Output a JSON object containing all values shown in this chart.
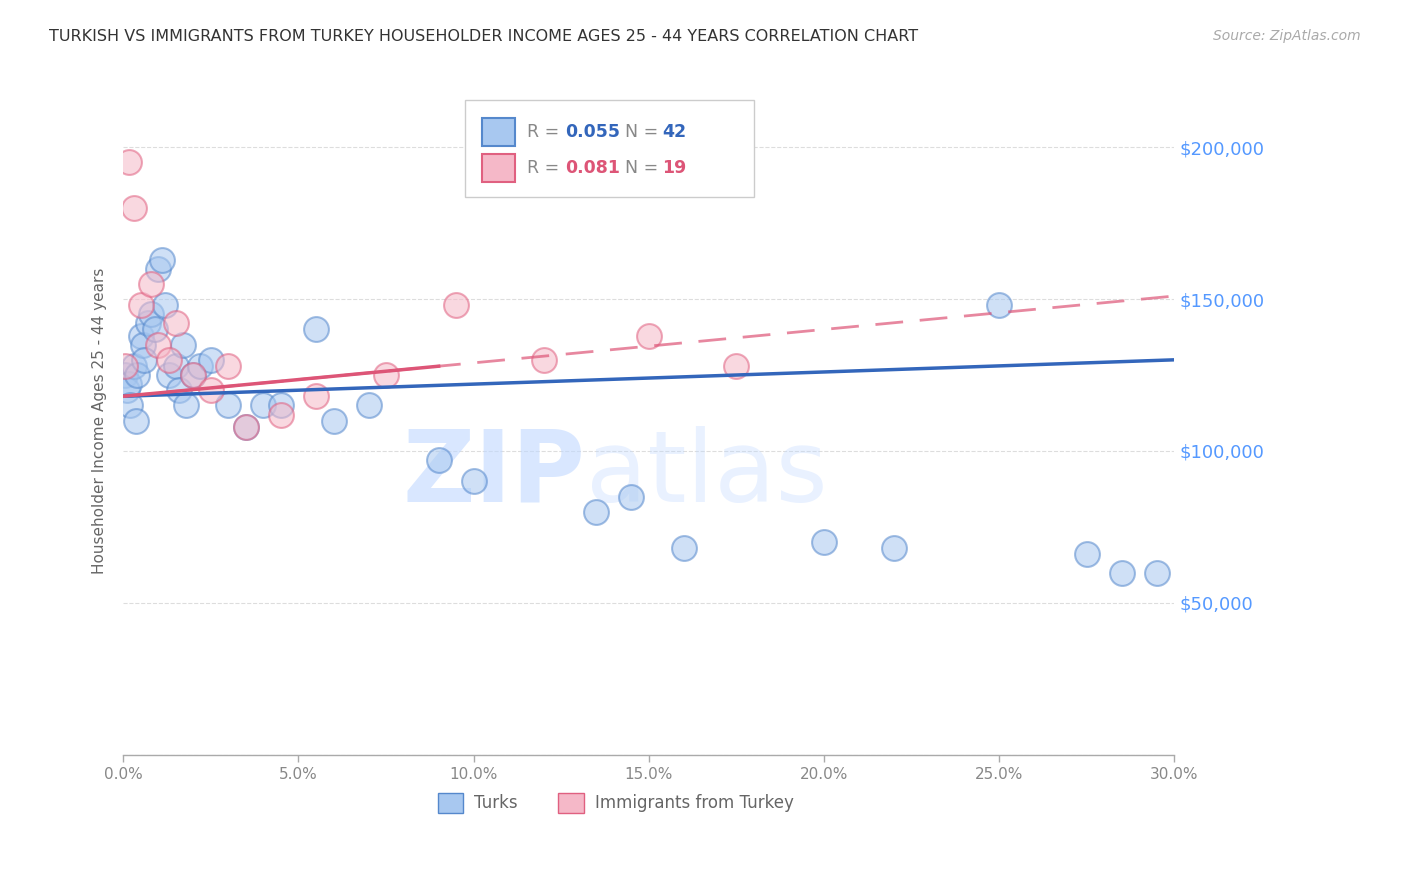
{
  "title": "TURKISH VS IMMIGRANTS FROM TURKEY HOUSEHOLDER INCOME AGES 25 - 44 YEARS CORRELATION CHART",
  "source": "Source: ZipAtlas.com",
  "xlim": [
    0.0,
    30.0
  ],
  "ylim": [
    0,
    220000
  ],
  "xlabel_vals": [
    0.0,
    5.0,
    10.0,
    15.0,
    20.0,
    25.0,
    30.0
  ],
  "xlabel_labels": [
    "0.0%",
    "5.0%",
    "10.0%",
    "15.0%",
    "20.0%",
    "25.0%",
    "30.0%"
  ],
  "ylabel_all_vals": [
    0,
    50000,
    100000,
    150000,
    200000
  ],
  "ylabel_right_vals": [
    200000,
    150000,
    100000,
    50000
  ],
  "ylabel_right_labels": [
    "$200,000",
    "$150,000",
    "$100,000",
    "$50,000"
  ],
  "ylabel_label": "Householder Income Ages 25 - 44 years",
  "blue_face": "#A8C8F0",
  "blue_edge": "#5588CC",
  "pink_face": "#F5B8C8",
  "pink_edge": "#E06080",
  "line_blue": "#3366BB",
  "line_pink": "#DD5577",
  "legend_r1": "0.055",
  "legend_n1": "42",
  "legend_r2": "0.081",
  "legend_n2": "19",
  "legend_label1": "Turks",
  "legend_label2": "Immigrants from Turkey",
  "watermark_zip": "ZIP",
  "watermark_atlas": "atlas",
  "background_color": "#FFFFFF",
  "grid_color": "#DDDDDD",
  "turks_x": [
    0.05,
    0.1,
    0.15,
    0.2,
    0.3,
    0.35,
    0.4,
    0.5,
    0.55,
    0.6,
    0.7,
    0.8,
    0.9,
    1.0,
    1.1,
    1.2,
    1.3,
    1.5,
    1.6,
    1.7,
    1.8,
    2.0,
    2.2,
    2.5,
    3.0,
    3.5,
    4.0,
    5.5,
    7.0,
    10.0,
    13.5,
    16.0,
    20.0,
    22.0,
    25.0,
    27.5,
    28.5,
    29.5,
    14.5,
    9.0,
    6.0,
    4.5
  ],
  "turks_y": [
    125000,
    120000,
    122000,
    115000,
    128000,
    110000,
    125000,
    138000,
    135000,
    130000,
    142000,
    145000,
    140000,
    160000,
    163000,
    148000,
    125000,
    128000,
    120000,
    135000,
    115000,
    125000,
    128000,
    130000,
    115000,
    108000,
    115000,
    140000,
    115000,
    90000,
    80000,
    68000,
    70000,
    68000,
    148000,
    66000,
    60000,
    60000,
    85000,
    97000,
    110000,
    115000
  ],
  "imm_x": [
    0.05,
    0.15,
    0.3,
    0.5,
    0.8,
    1.0,
    1.3,
    1.5,
    2.0,
    2.5,
    3.0,
    3.5,
    4.5,
    5.5,
    7.5,
    9.5,
    12.0,
    15.0,
    17.5
  ],
  "imm_y": [
    128000,
    195000,
    180000,
    148000,
    155000,
    135000,
    130000,
    142000,
    125000,
    120000,
    128000,
    108000,
    112000,
    118000,
    125000,
    148000,
    130000,
    138000,
    128000
  ]
}
